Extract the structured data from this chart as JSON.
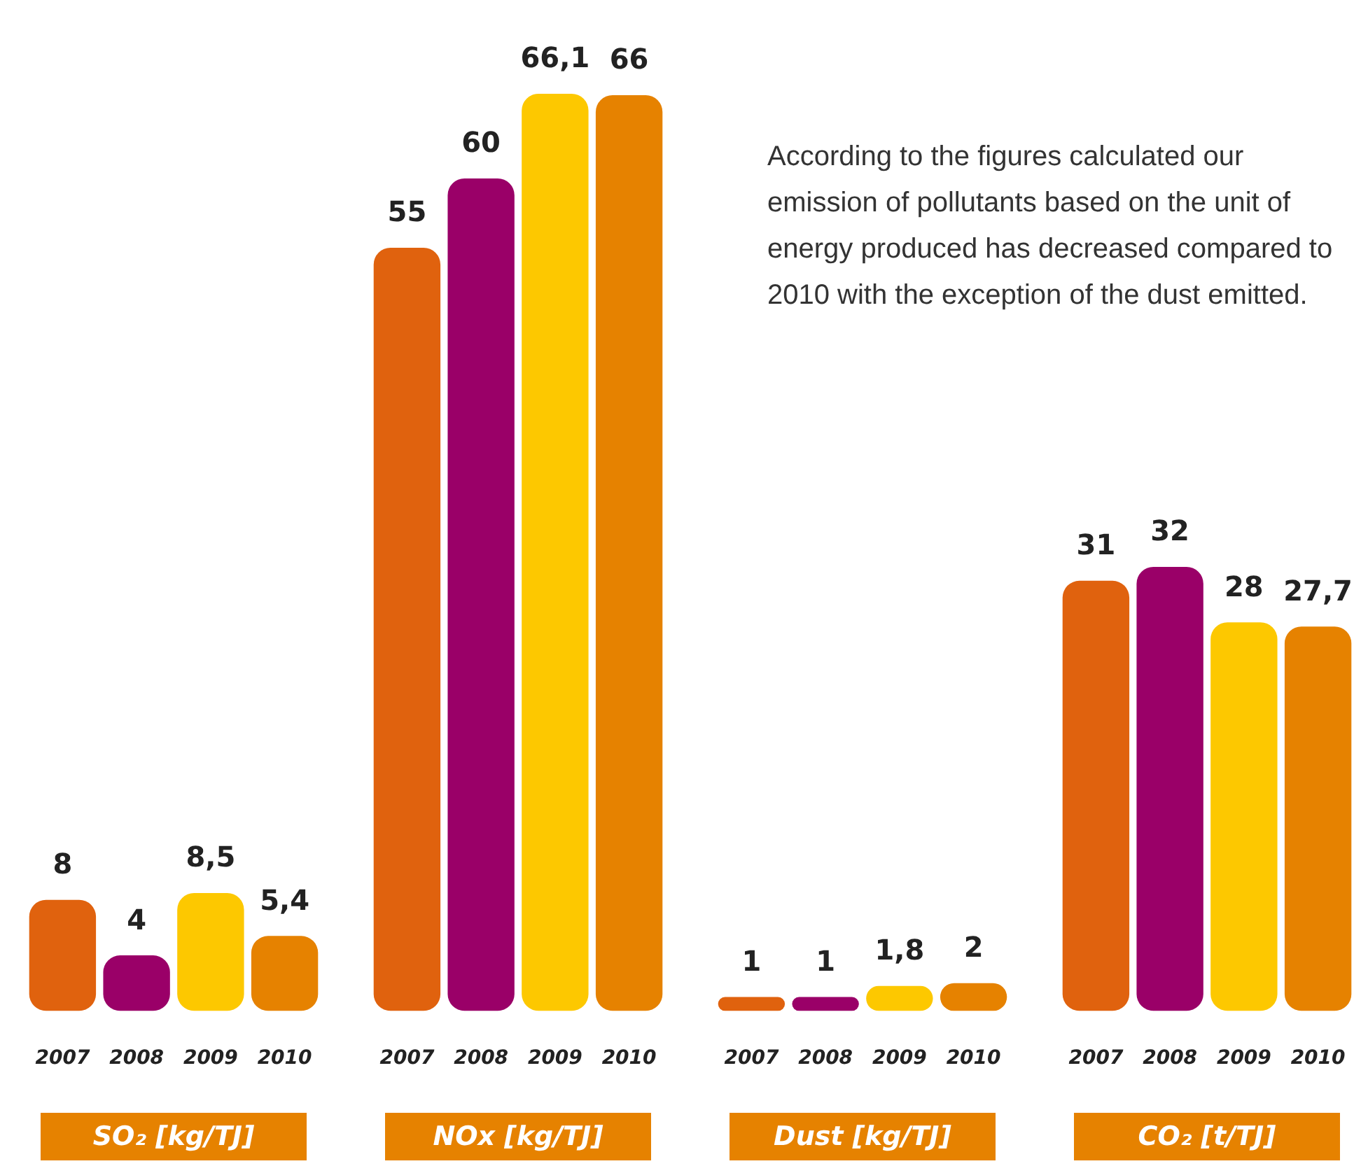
{
  "chart_data": [
    {
      "type": "bar",
      "xlabel": "SO₂ [kg/TJ]",
      "categories": [
        "2007",
        "2008",
        "2009",
        "2010"
      ],
      "values": [
        8,
        4,
        8.5,
        5.4
      ],
      "value_labels": [
        "8",
        "4",
        "8,5",
        "5,4"
      ],
      "colors": [
        "#e0620e",
        "#9a0068",
        "#fdc800",
        "#e68200"
      ]
    },
    {
      "type": "bar",
      "xlabel": "NOx [kg/TJ]",
      "categories": [
        "2007",
        "2008",
        "2009",
        "2010"
      ],
      "values": [
        55,
        60,
        66.1,
        66
      ],
      "value_labels": [
        "55",
        "60",
        "66,1",
        "66"
      ],
      "colors": [
        "#e0620e",
        "#9a0068",
        "#fdc800",
        "#e68200"
      ]
    },
    {
      "type": "bar",
      "xlabel": "Dust [kg/TJ]",
      "categories": [
        "2007",
        "2008",
        "2009",
        "2010"
      ],
      "values": [
        1,
        1,
        1.8,
        2
      ],
      "value_labels": [
        "1",
        "1",
        "1,8",
        "2"
      ],
      "colors": [
        "#e0620e",
        "#9a0068",
        "#fdc800",
        "#e68200"
      ],
      "annotations": [
        "According to the figures calculated our emission of pollutants based on the unit of energy produced has decreased compared to 2010 with the exception of the dust emitted."
      ]
    },
    {
      "type": "bar",
      "xlabel": "CO₂ [t/TJ]",
      "categories": [
        "2007",
        "2008",
        "2009",
        "2010"
      ],
      "values": [
        31,
        32,
        28,
        27.7
      ],
      "value_labels": [
        "31",
        "32",
        "28",
        "27,7"
      ],
      "colors": [
        "#e0620e",
        "#9a0068",
        "#fdc800",
        "#e68200"
      ]
    }
  ]
}
